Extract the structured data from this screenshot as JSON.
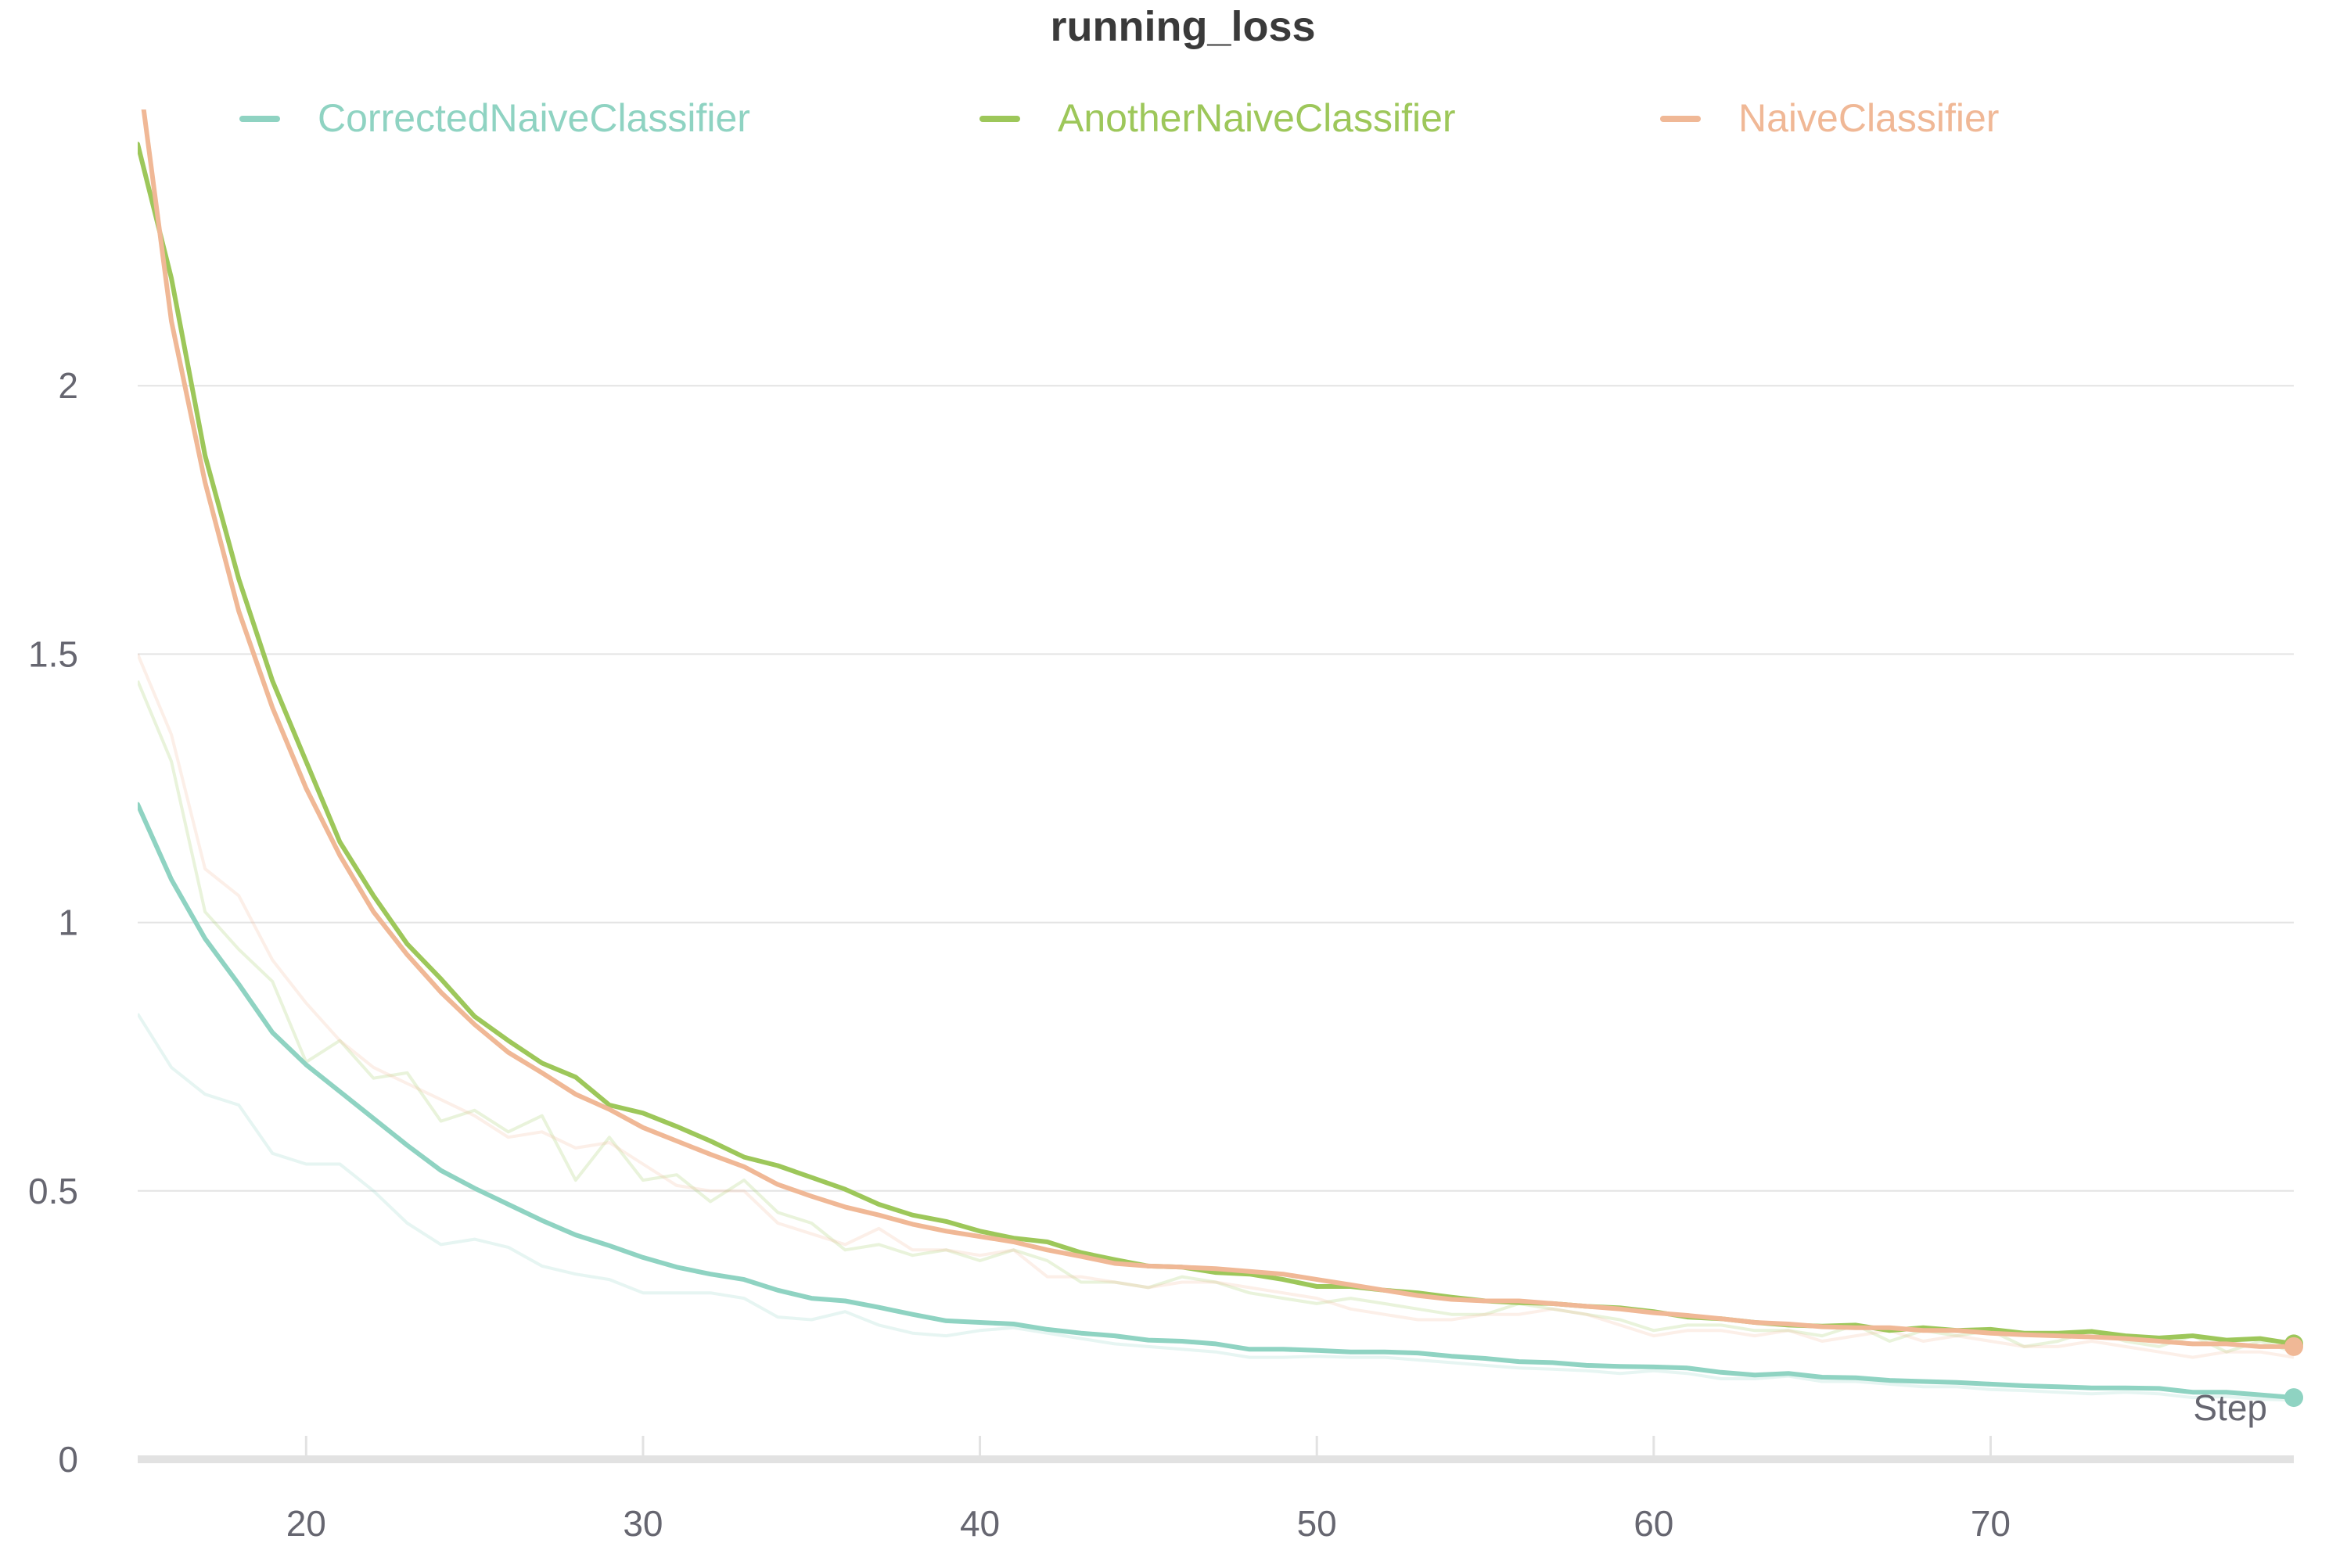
{
  "chart_data": {
    "type": "line",
    "title": "running_loss",
    "xlabel": "Step",
    "ylabel": "",
    "xlim": [
      15,
      79
    ],
    "ylim": [
      0,
      2.5
    ],
    "x_ticks": [
      20,
      30,
      40,
      50,
      60,
      70
    ],
    "y_ticks": [
      0,
      0.5,
      1,
      1.5,
      2
    ],
    "y_tick_labels": [
      "0",
      "0.5",
      "1",
      "1.5",
      "2"
    ],
    "grid": "horizontal",
    "legend_position": "top",
    "series": [
      {
        "name": "CorrectedNaiveClassifier",
        "color": "#8fd3c2",
        "x": [
          15,
          16,
          17,
          18,
          19,
          20,
          21,
          22,
          23,
          24,
          25,
          26,
          27,
          28,
          29,
          30,
          31,
          32,
          33,
          34,
          35,
          36,
          37,
          38,
          39,
          40,
          41,
          42,
          43,
          44,
          45,
          46,
          47,
          48,
          49,
          50,
          51,
          52,
          53,
          54,
          55,
          56,
          57,
          58,
          59,
          60,
          61,
          62,
          63,
          64,
          65,
          66,
          67,
          68,
          69,
          70,
          71,
          72,
          73,
          74,
          75,
          76,
          77,
          78,
          79
        ],
        "smoothed": [
          1.22,
          1.08,
          0.97,
          0.885,
          0.795,
          0.735,
          0.685,
          0.635,
          0.585,
          0.538,
          0.505,
          0.475,
          0.445,
          0.418,
          0.398,
          0.376,
          0.358,
          0.345,
          0.335,
          0.315,
          0.3,
          0.295,
          0.283,
          0.27,
          0.258,
          0.255,
          0.252,
          0.242,
          0.235,
          0.23,
          0.222,
          0.22,
          0.215,
          0.205,
          0.205,
          0.203,
          0.2,
          0.2,
          0.198,
          0.192,
          0.188,
          0.182,
          0.18,
          0.175,
          0.173,
          0.172,
          0.17,
          0.162,
          0.157,
          0.16,
          0.153,
          0.152,
          0.147,
          0.145,
          0.143,
          0.14,
          0.137,
          0.135,
          0.133,
          0.133,
          0.132,
          0.125,
          0.125,
          0.12,
          0.115
        ],
        "raw": [
          0.83,
          0.73,
          0.68,
          0.66,
          0.57,
          0.55,
          0.55,
          0.5,
          0.44,
          0.4,
          0.41,
          0.395,
          0.36,
          0.345,
          0.335,
          0.31,
          0.31,
          0.31,
          0.3,
          0.265,
          0.26,
          0.275,
          0.25,
          0.235,
          0.23,
          0.24,
          0.245,
          0.235,
          0.225,
          0.215,
          0.21,
          0.205,
          0.2,
          0.19,
          0.19,
          0.192,
          0.19,
          0.19,
          0.185,
          0.18,
          0.175,
          0.17,
          0.168,
          0.165,
          0.16,
          0.165,
          0.16,
          0.15,
          0.15,
          0.155,
          0.145,
          0.145,
          0.14,
          0.135,
          0.135,
          0.13,
          0.128,
          0.125,
          0.122,
          0.125,
          0.122,
          0.115,
          0.117,
          0.112,
          0.11
        ]
      },
      {
        "name": "AnotherNaiveClassifier",
        "color": "#9dc75a",
        "x": [
          15,
          16,
          17,
          18,
          19,
          20,
          21,
          22,
          23,
          24,
          25,
          26,
          27,
          28,
          29,
          30,
          31,
          32,
          33,
          34,
          35,
          36,
          37,
          38,
          39,
          40,
          41,
          42,
          43,
          44,
          45,
          46,
          47,
          48,
          49,
          50,
          51,
          52,
          53,
          54,
          55,
          56,
          57,
          58,
          59,
          60,
          61,
          62,
          63,
          64,
          65,
          66,
          67,
          68,
          69,
          70,
          71,
          72,
          73,
          74,
          75,
          76,
          77,
          78,
          79
        ],
        "smoothed": [
          2.45,
          2.2,
          1.87,
          1.64,
          1.45,
          1.3,
          1.15,
          1.05,
          0.96,
          0.895,
          0.825,
          0.78,
          0.738,
          0.712,
          0.66,
          0.645,
          0.62,
          0.593,
          0.563,
          0.547,
          0.525,
          0.503,
          0.475,
          0.455,
          0.443,
          0.425,
          0.412,
          0.405,
          0.385,
          0.372,
          0.36,
          0.358,
          0.348,
          0.345,
          0.335,
          0.322,
          0.322,
          0.315,
          0.31,
          0.302,
          0.295,
          0.292,
          0.29,
          0.285,
          0.282,
          0.275,
          0.265,
          0.262,
          0.255,
          0.25,
          0.248,
          0.25,
          0.24,
          0.245,
          0.24,
          0.242,
          0.235,
          0.235,
          0.238,
          0.23,
          0.226,
          0.23,
          0.222,
          0.225,
          0.215
        ],
        "raw": [
          1.45,
          1.3,
          1.02,
          0.95,
          0.89,
          0.74,
          0.78,
          0.71,
          0.72,
          0.63,
          0.65,
          0.61,
          0.64,
          0.52,
          0.6,
          0.52,
          0.53,
          0.48,
          0.52,
          0.46,
          0.44,
          0.39,
          0.4,
          0.38,
          0.39,
          0.37,
          0.39,
          0.37,
          0.33,
          0.33,
          0.32,
          0.34,
          0.33,
          0.31,
          0.3,
          0.29,
          0.3,
          0.29,
          0.28,
          0.27,
          0.27,
          0.29,
          0.28,
          0.27,
          0.26,
          0.24,
          0.25,
          0.25,
          0.24,
          0.24,
          0.23,
          0.25,
          0.22,
          0.24,
          0.23,
          0.24,
          0.21,
          0.22,
          0.24,
          0.22,
          0.21,
          0.23,
          0.2,
          0.22,
          0.2
        ]
      },
      {
        "name": "NaiveClassifier",
        "color": "#f0b896",
        "x": [
          15,
          16,
          17,
          18,
          19,
          20,
          21,
          22,
          23,
          24,
          25,
          26,
          27,
          28,
          29,
          30,
          31,
          32,
          33,
          34,
          35,
          36,
          37,
          38,
          39,
          40,
          41,
          42,
          43,
          44,
          45,
          46,
          47,
          48,
          49,
          50,
          51,
          52,
          53,
          54,
          55,
          56,
          57,
          58,
          59,
          60,
          61,
          62,
          63,
          64,
          65,
          66,
          67,
          68,
          69,
          70,
          71,
          72,
          73,
          74,
          75,
          76,
          77,
          78,
          79
        ],
        "smoothed": [
          2.6,
          2.12,
          1.82,
          1.58,
          1.4,
          1.25,
          1.125,
          1.02,
          0.94,
          0.87,
          0.81,
          0.758,
          0.72,
          0.68,
          0.652,
          0.618,
          0.593,
          0.568,
          0.545,
          0.512,
          0.49,
          0.47,
          0.455,
          0.438,
          0.425,
          0.415,
          0.405,
          0.39,
          0.378,
          0.365,
          0.36,
          0.358,
          0.355,
          0.35,
          0.345,
          0.335,
          0.325,
          0.315,
          0.305,
          0.298,
          0.295,
          0.295,
          0.29,
          0.285,
          0.28,
          0.273,
          0.268,
          0.262,
          0.255,
          0.252,
          0.247,
          0.245,
          0.245,
          0.24,
          0.24,
          0.235,
          0.232,
          0.23,
          0.228,
          0.225,
          0.22,
          0.215,
          0.215,
          0.21,
          0.21
        ],
        "raw": [
          1.5,
          1.35,
          1.1,
          1.05,
          0.93,
          0.85,
          0.78,
          0.73,
          0.7,
          0.67,
          0.64,
          0.6,
          0.61,
          0.58,
          0.59,
          0.55,
          0.51,
          0.5,
          0.5,
          0.44,
          0.42,
          0.4,
          0.43,
          0.39,
          0.39,
          0.38,
          0.39,
          0.34,
          0.34,
          0.33,
          0.32,
          0.33,
          0.33,
          0.32,
          0.31,
          0.3,
          0.28,
          0.27,
          0.26,
          0.26,
          0.27,
          0.27,
          0.28,
          0.27,
          0.25,
          0.23,
          0.24,
          0.24,
          0.23,
          0.24,
          0.22,
          0.23,
          0.24,
          0.22,
          0.23,
          0.22,
          0.21,
          0.21,
          0.22,
          0.21,
          0.2,
          0.19,
          0.2,
          0.2,
          0.19
        ]
      }
    ]
  }
}
